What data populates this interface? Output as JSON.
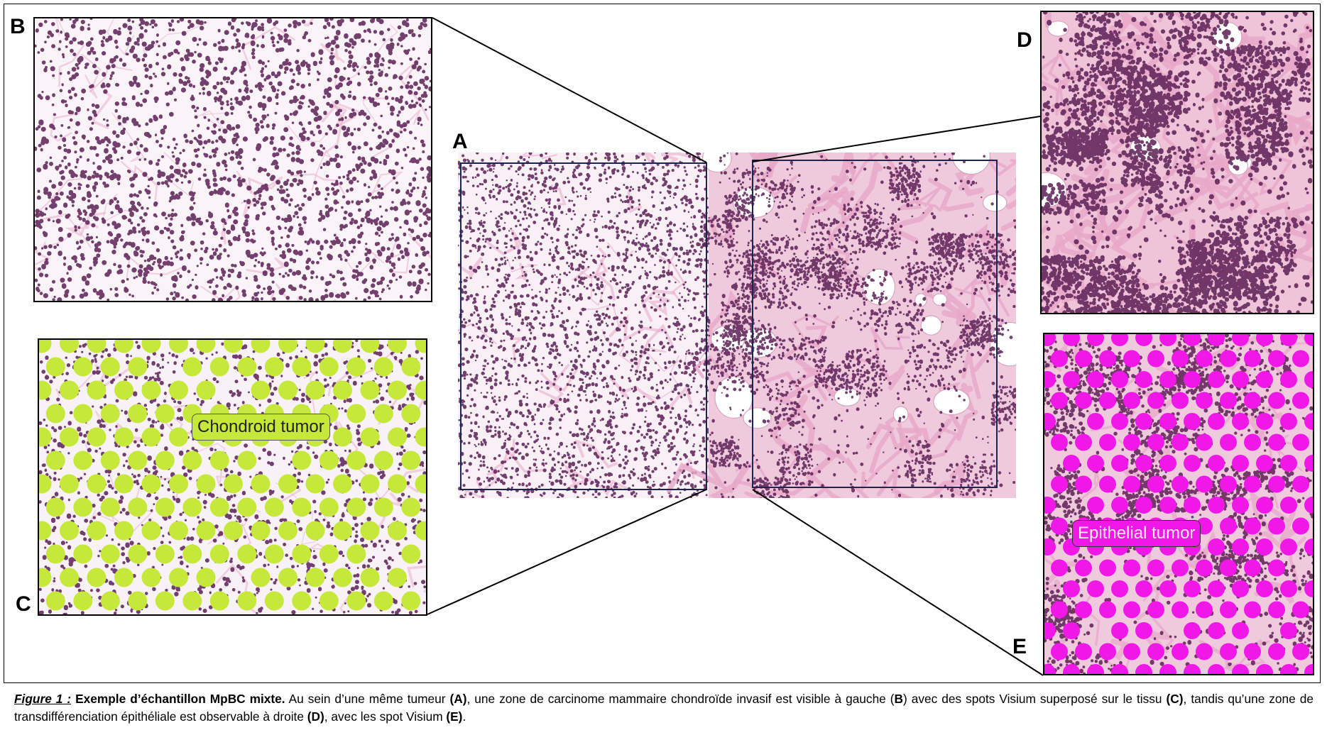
{
  "panels": {
    "a": {
      "letter": "A"
    },
    "b": {
      "letter": "B"
    },
    "c": {
      "letter": "C",
      "overlay_label": "Chondroid tumor",
      "spot_color": "#c5e83a"
    },
    "d": {
      "letter": "D"
    },
    "e": {
      "letter": "E",
      "overlay_label": "Epithelial tumor",
      "spot_color": "#f018e6"
    }
  },
  "colors": {
    "tissue_background": "#f7eef4",
    "nucleus": "#5a1f55",
    "stroma": "#e7a7c8",
    "roi_box": "#1a2550"
  },
  "caption": {
    "figure_label": "Figure 1 :",
    "title": "Exemple d’échantillon MpBC mixte.",
    "t1": " Au sein d’une même tumeur ",
    "ref_a": "(A)",
    "t2": ", une zone de carcinome mammaire chondroïde invasif est visible à gauche (",
    "ref_b": "B",
    "t3": ") avec des spots Visium superposé sur le tissu ",
    "ref_c": "(C)",
    "t4": ", tandis qu’une zone de transdifférenciation épithéliale est observable à droite ",
    "ref_d": "(D)",
    "t5": ", avec les spot Visium ",
    "ref_e": "(E)",
    "t6": "."
  }
}
